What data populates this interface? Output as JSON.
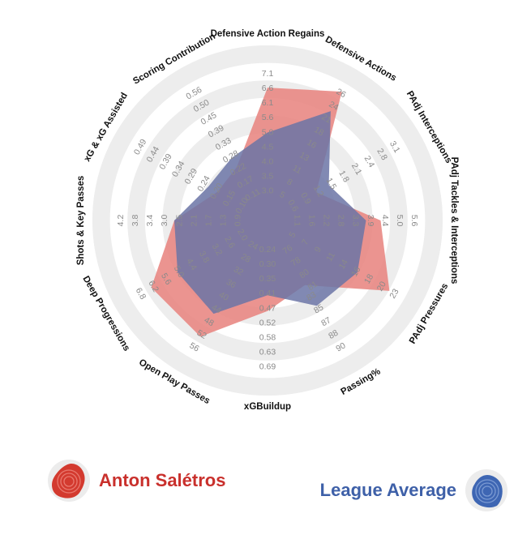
{
  "chart_data": {
    "type": "radar",
    "title": "",
    "grid": true,
    "axes": [
      {
        "label": "Defensive Action Regains",
        "ticks": [
          "3.0",
          "3.5",
          "4.0",
          "4.5",
          "5.0",
          "5.6",
          "6.1",
          "6.6",
          "7.1"
        ]
      },
      {
        "label": "Defensive Actions",
        "ticks": [
          "5",
          "8",
          "11",
          "13",
          "16",
          "18",
          "21",
          "24",
          "26"
        ]
      },
      {
        "label": "PAdj Interceptions",
        "ticks": [
          "0.6",
          "0.9",
          "1.2",
          "1.5",
          "1.8",
          "2.1",
          "2.4",
          "2.8",
          "3.1"
        ]
      },
      {
        "label": "PAdj Tackles & Interceptions",
        "ticks": [
          "1.1",
          "1.6",
          "2.2",
          "2.8",
          "3.3",
          "3.9",
          "4.4",
          "5.0",
          "5.6"
        ]
      },
      {
        "label": "PAdj Pressures",
        "ticks": [
          "5",
          "7",
          "9",
          "11",
          "14",
          "16",
          "18",
          "20",
          "23"
        ]
      },
      {
        "label": "Passing%",
        "ticks": [
          "83",
          "85",
          "87",
          "88",
          "90"
        ]
      },
      {
        "label": "xGBuildup",
        "ticks": [
          "0.24",
          "0.30",
          "0.35",
          "0.41",
          "0.47",
          "0.52",
          "0.58",
          "0.63",
          "0.69"
        ]
      },
      {
        "label": "Open Play Passes",
        "ticks": [
          "24",
          "28",
          "32",
          "36",
          "40",
          "44",
          "48",
          "52",
          "56"
        ]
      },
      {
        "label": "Deep Progressions",
        "ticks": [
          "2.0",
          "2.6",
          "3.2",
          "3.8",
          "4.4",
          "5.0",
          "5.6",
          "6.2",
          "6.8"
        ]
      },
      {
        "label": "Shots & Key Passes",
        "ticks": [
          "0.9",
          "1.3",
          "1.7",
          "2.1",
          "2.5",
          "3.0",
          "3.4",
          "3.8",
          "4.2"
        ]
      },
      {
        "label": "xG & xG Assisted",
        "ticks": [
          "0.10",
          "0.15",
          "0.20",
          "0.24",
          "0.29",
          "0.34",
          "0.39",
          "0.44",
          "0.49"
        ]
      },
      {
        "label": "Scoring Contribution",
        "ticks": [
          "0.11",
          "0.17",
          "0.22",
          "0.28",
          "0.33",
          "0.39",
          "0.45",
          "0.50",
          "0.56"
        ]
      }
    ],
    "passing_inner_ticks": [
      "76",
      "78",
      "80",
      "81"
    ],
    "series": [
      {
        "name": "Anton Salétros",
        "color": "#d9534f",
        "fill": "#e8817d",
        "fractions": [
          0.84,
          0.96,
          0.26,
          0.69,
          0.9,
          0.4,
          0.52,
          0.85,
          0.85,
          0.54,
          0.27,
          0.3
        ]
      },
      {
        "name": "League Average",
        "color": "#3b5bab",
        "fill": "#6b74a6",
        "fractions": [
          0.5,
          0.79,
          0.37,
          0.58,
          0.62,
          0.58,
          0.4,
          0.65,
          0.62,
          0.54,
          0.35,
          0.38
        ]
      }
    ]
  },
  "legend": {
    "player": {
      "name": "Anton Salétros",
      "color": "#c9302c"
    },
    "average": {
      "name": "League Average",
      "color": "#3e60a8"
    }
  }
}
